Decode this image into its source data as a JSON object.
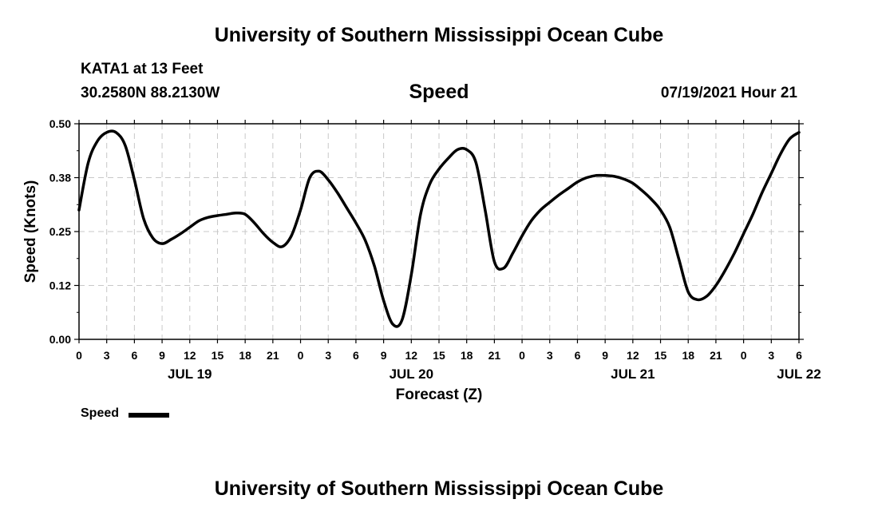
{
  "header": {
    "organization": "University of Southern Mississippi Ocean Cube",
    "station": "KATA1 at 13 Feet",
    "coordinates": "30.2580N  88.2130W",
    "datetime": "07/19/2021 Hour 21"
  },
  "footer": {
    "organization": "University of Southern Mississippi Ocean Cube"
  },
  "legend": {
    "label": "Speed",
    "color": "#000000"
  },
  "chart_data": {
    "type": "line",
    "title": "Speed",
    "xlabel": "Forecast (Z)",
    "ylabel": "Speed (Knots)",
    "ylim": [
      0,
      0.5
    ],
    "yticks": [
      0,
      0.125,
      0.25,
      0.375,
      0.5
    ],
    "ytick_labels": [
      "0.00",
      "0.12",
      "0.25",
      "0.38",
      "0.50"
    ],
    "xlim": [
      0,
      78
    ],
    "xticks": [
      0,
      3,
      6,
      9,
      12,
      15,
      18,
      21,
      24,
      27,
      30,
      33,
      36,
      39,
      42,
      45,
      48,
      51,
      54,
      57,
      60,
      63,
      66,
      69,
      72,
      75,
      78
    ],
    "xtick_labels": [
      "0",
      "3",
      "6",
      "9",
      "12",
      "15",
      "18",
      "21",
      "0",
      "3",
      "6",
      "9",
      "12",
      "15",
      "18",
      "21",
      "0",
      "3",
      "6",
      "9",
      "12",
      "15",
      "18",
      "21",
      "0",
      "3",
      "6"
    ],
    "date_labels": [
      {
        "label": "JUL 19",
        "hour": 12
      },
      {
        "label": "JUL 20",
        "hour": 36
      },
      {
        "label": "JUL 21",
        "hour": 60
      },
      {
        "label": "JUL 22",
        "hour": 78
      }
    ],
    "grid": true,
    "series": [
      {
        "name": "Speed",
        "x": [
          0,
          1,
          2,
          3,
          4,
          5,
          6,
          7,
          8,
          9,
          10,
          11,
          12,
          13,
          14,
          15,
          16,
          17,
          18,
          19,
          20,
          21,
          22,
          23,
          24,
          25,
          26,
          27,
          28,
          29,
          30,
          31,
          32,
          33,
          34,
          35,
          36,
          37,
          38,
          39,
          40,
          41,
          42,
          43,
          44,
          45,
          46,
          47,
          48,
          49,
          50,
          51,
          52,
          53,
          54,
          55,
          56,
          57,
          58,
          59,
          60,
          61,
          62,
          63,
          64,
          65,
          66,
          67,
          68,
          69,
          70,
          71,
          72,
          73,
          74,
          75,
          76,
          77,
          78
        ],
        "y": [
          0.3,
          0.41,
          0.46,
          0.48,
          0.48,
          0.45,
          0.37,
          0.28,
          0.235,
          0.222,
          0.232,
          0.245,
          0.26,
          0.275,
          0.283,
          0.287,
          0.29,
          0.293,
          0.29,
          0.27,
          0.245,
          0.225,
          0.215,
          0.24,
          0.3,
          0.375,
          0.39,
          0.37,
          0.34,
          0.305,
          0.27,
          0.23,
          0.17,
          0.09,
          0.035,
          0.045,
          0.15,
          0.29,
          0.36,
          0.395,
          0.42,
          0.44,
          0.44,
          0.41,
          0.3,
          0.18,
          0.165,
          0.2,
          0.24,
          0.275,
          0.3,
          0.318,
          0.335,
          0.35,
          0.365,
          0.375,
          0.38,
          0.38,
          0.378,
          0.372,
          0.362,
          0.345,
          0.325,
          0.3,
          0.26,
          0.185,
          0.11,
          0.092,
          0.1,
          0.125,
          0.16,
          0.2,
          0.245,
          0.29,
          0.34,
          0.385,
          0.43,
          0.465,
          0.48
        ]
      }
    ]
  }
}
